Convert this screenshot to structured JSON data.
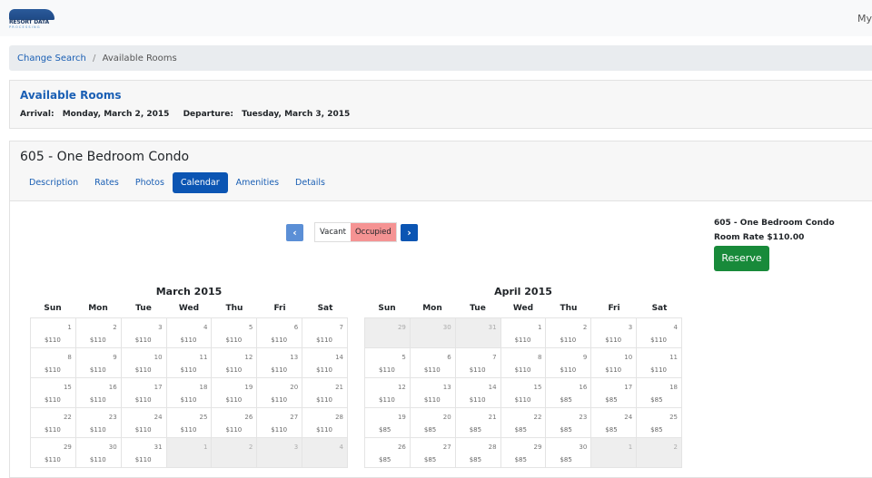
{
  "header": {
    "logo_text": "RESORT DATA",
    "logo_sub": "PROCESSING",
    "user_menu": "My"
  },
  "breadcrumb": {
    "link": "Change Search",
    "sep": "/",
    "current": "Available Rooms"
  },
  "search": {
    "title": "Available Rooms",
    "arrival_label": "Arrival:",
    "arrival": "Monday, March 2, 2015",
    "departure_label": "Departure:",
    "departure": "Tuesday, March 3, 2015"
  },
  "room": {
    "title": "605 - One Bedroom Condo",
    "tabs": [
      "Description",
      "Rates",
      "Photos",
      "Calendar",
      "Amenities",
      "Details"
    ],
    "active_tab": "Calendar",
    "side_title": "605 - One Bedroom Condo",
    "rate": "Room Rate $110.00",
    "reserve": "Reserve"
  },
  "calendar": {
    "prev": "‹",
    "next": "›",
    "legend": {
      "vacant": "Vacant",
      "occupied": "Occupied"
    },
    "colors": {
      "prev": "#5b8fd6",
      "next": "#0b55b3",
      "occupied": "#f59393",
      "other_month": "#eeeeee"
    },
    "weekdays": [
      "Sun",
      "Mon",
      "Tue",
      "Wed",
      "Thu",
      "Fri",
      "Sat"
    ],
    "months": [
      {
        "title": "March 2015",
        "weeks": [
          [
            {
              "d": "1",
              "p": "$110"
            },
            {
              "d": "2",
              "p": "$110"
            },
            {
              "d": "3",
              "p": "$110"
            },
            {
              "d": "4",
              "p": "$110"
            },
            {
              "d": "5",
              "p": "$110"
            },
            {
              "d": "6",
              "p": "$110"
            },
            {
              "d": "7",
              "p": "$110"
            }
          ],
          [
            {
              "d": "8",
              "p": "$110"
            },
            {
              "d": "9",
              "p": "$110"
            },
            {
              "d": "10",
              "p": "$110"
            },
            {
              "d": "11",
              "p": "$110"
            },
            {
              "d": "12",
              "p": "$110"
            },
            {
              "d": "13",
              "p": "$110"
            },
            {
              "d": "14",
              "p": "$110"
            }
          ],
          [
            {
              "d": "15",
              "p": "$110"
            },
            {
              "d": "16",
              "p": "$110"
            },
            {
              "d": "17",
              "p": "$110"
            },
            {
              "d": "18",
              "p": "$110"
            },
            {
              "d": "19",
              "p": "$110"
            },
            {
              "d": "20",
              "p": "$110"
            },
            {
              "d": "21",
              "p": "$110"
            }
          ],
          [
            {
              "d": "22",
              "p": "$110"
            },
            {
              "d": "23",
              "p": "$110"
            },
            {
              "d": "24",
              "p": "$110"
            },
            {
              "d": "25",
              "p": "$110"
            },
            {
              "d": "26",
              "p": "$110"
            },
            {
              "d": "27",
              "p": "$110"
            },
            {
              "d": "28",
              "p": "$110"
            }
          ],
          [
            {
              "d": "29",
              "p": "$110"
            },
            {
              "d": "30",
              "p": "$110"
            },
            {
              "d": "31",
              "p": "$110"
            },
            {
              "d": "1",
              "o": true
            },
            {
              "d": "2",
              "o": true
            },
            {
              "d": "3",
              "o": true
            },
            {
              "d": "4",
              "o": true
            }
          ]
        ]
      },
      {
        "title": "April 2015",
        "weeks": [
          [
            {
              "d": "29",
              "o": true
            },
            {
              "d": "30",
              "o": true
            },
            {
              "d": "31",
              "o": true
            },
            {
              "d": "1",
              "p": "$110"
            },
            {
              "d": "2",
              "p": "$110"
            },
            {
              "d": "3",
              "p": "$110"
            },
            {
              "d": "4",
              "p": "$110"
            }
          ],
          [
            {
              "d": "5",
              "p": "$110"
            },
            {
              "d": "6",
              "p": "$110"
            },
            {
              "d": "7",
              "p": "$110"
            },
            {
              "d": "8",
              "p": "$110"
            },
            {
              "d": "9",
              "p": "$110"
            },
            {
              "d": "10",
              "p": "$110"
            },
            {
              "d": "11",
              "p": "$110"
            }
          ],
          [
            {
              "d": "12",
              "p": "$110"
            },
            {
              "d": "13",
              "p": "$110"
            },
            {
              "d": "14",
              "p": "$110"
            },
            {
              "d": "15",
              "p": "$110"
            },
            {
              "d": "16",
              "p": "$85"
            },
            {
              "d": "17",
              "p": "$85"
            },
            {
              "d": "18",
              "p": "$85"
            }
          ],
          [
            {
              "d": "19",
              "p": "$85"
            },
            {
              "d": "20",
              "p": "$85"
            },
            {
              "d": "21",
              "p": "$85"
            },
            {
              "d": "22",
              "p": "$85"
            },
            {
              "d": "23",
              "p": "$85"
            },
            {
              "d": "24",
              "p": "$85"
            },
            {
              "d": "25",
              "p": "$85"
            }
          ],
          [
            {
              "d": "26",
              "p": "$85"
            },
            {
              "d": "27",
              "p": "$85"
            },
            {
              "d": "28",
              "p": "$85"
            },
            {
              "d": "29",
              "p": "$85"
            },
            {
              "d": "30",
              "p": "$85"
            },
            {
              "d": "1",
              "o": true
            },
            {
              "d": "2",
              "o": true
            }
          ]
        ]
      }
    ]
  }
}
